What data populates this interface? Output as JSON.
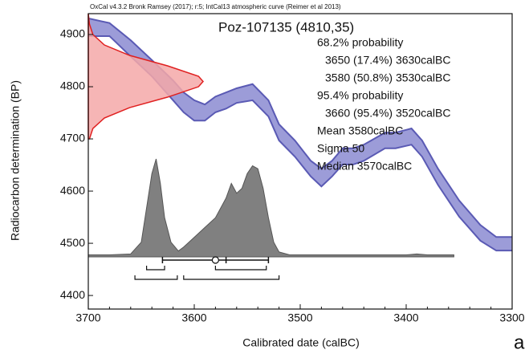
{
  "chart_data": {
    "type": "calibration",
    "header": "OxCal v4.3.2 Bronk Ramsey (2017); r:5; IntCal13 atmospheric curve (Reimer et al 2013)",
    "title": "Poz-107135 (4810,35)",
    "stats": [
      "68.2% probability",
      "3650 (17.4%) 3630calBC",
      "3580 (50.8%) 3530calBC",
      "95.4% probability",
      "3660 (95.4%) 3520calBC",
      "Mean 3580calBC",
      "Sigma 50",
      "Median 3570calBC"
    ],
    "x_label": "Calibrated date (calBC)",
    "y_label": "Radiocarbon determination (BP)",
    "panel_label": "a",
    "xlim": [
      3700,
      3300
    ],
    "ylim": [
      4374,
      4940
    ],
    "xticks": [
      3700,
      3600,
      3500,
      3400,
      3300
    ],
    "yticks": [
      4400,
      4500,
      4600,
      4700,
      4800,
      4900
    ],
    "curve": {
      "color": "#5a5ab4",
      "fill": "#9c9cd8",
      "x": [
        3700,
        3680,
        3660,
        3640,
        3620,
        3610,
        3600,
        3590,
        3580,
        3570,
        3560,
        3545,
        3530,
        3520,
        3505,
        3490,
        3480,
        3470,
        3460,
        3450,
        3440,
        3420,
        3410,
        3395,
        3385,
        3370,
        3350,
        3330,
        3315,
        3300
      ],
      "upper": [
        4931,
        4922,
        4889,
        4851,
        4812,
        4789,
        4774,
        4766,
        4781,
        4789,
        4797,
        4805,
        4774,
        4728,
        4697,
        4658,
        4643,
        4658,
        4682,
        4682,
        4689,
        4712,
        4712,
        4720,
        4697,
        4643,
        4582,
        4535,
        4512,
        4512
      ],
      "lower": [
        4897,
        4897,
        4858,
        4820,
        4774,
        4751,
        4735,
        4735,
        4751,
        4758,
        4769,
        4774,
        4743,
        4697,
        4666,
        4628,
        4609,
        4628,
        4651,
        4651,
        4658,
        4682,
        4682,
        4689,
        4666,
        4612,
        4551,
        4505,
        4486,
        4486
      ]
    },
    "radiocarbon_density": {
      "color": "#e02020",
      "fill": "#f4a8a8",
      "y": [
        4700,
        4720,
        4740,
        4760,
        4780,
        4800,
        4810,
        4820,
        4840,
        4860,
        4880,
        4900,
        4920,
        4940
      ],
      "values": [
        0.01,
        0.04,
        0.14,
        0.36,
        0.69,
        0.96,
        1,
        0.96,
        0.69,
        0.36,
        0.14,
        0.04,
        0.01,
        0
      ]
    },
    "calibrated_density": {
      "color": "#555",
      "fill": "#808080",
      "baseline": 4474,
      "x": [
        3700,
        3680,
        3660,
        3650,
        3645,
        3640,
        3636,
        3632,
        3628,
        3622,
        3615,
        3610,
        3600,
        3590,
        3580,
        3575,
        3570,
        3565,
        3560,
        3555,
        3550,
        3545,
        3540,
        3535,
        3530,
        3525,
        3520,
        3510,
        3500,
        3450,
        3400,
        3390,
        3380,
        3355
      ],
      "values": [
        0.02,
        0.02,
        0.03,
        0.15,
        0.5,
        0.85,
        1,
        0.75,
        0.4,
        0.15,
        0.06,
        0.1,
        0.2,
        0.3,
        0.4,
        0.5,
        0.6,
        0.75,
        0.65,
        0.7,
        0.85,
        0.93,
        0.9,
        0.7,
        0.4,
        0.15,
        0.05,
        0.02,
        0.02,
        0.02,
        0.02,
        0.03,
        0.02,
        0.02
      ]
    },
    "ranges_68": [
      [
        3645,
        3628
      ],
      [
        3580,
        3532
      ]
    ],
    "ranges_95": [
      [
        3656,
        3616
      ],
      [
        3610,
        3520
      ]
    ],
    "mean": 3580,
    "sigma": 50,
    "median": 3570
  }
}
